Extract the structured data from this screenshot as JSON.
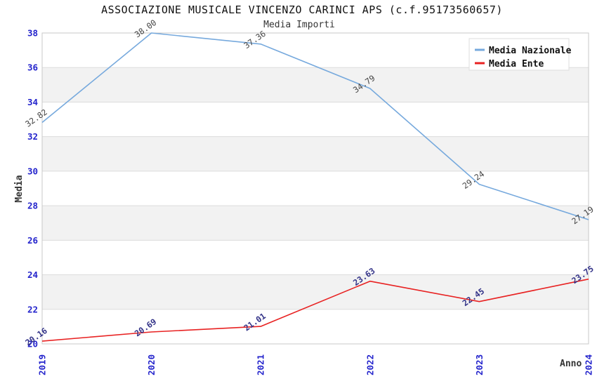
{
  "title": "ASSOCIAZIONE MUSICALE VINCENZO CARINCI APS (c.f.95173560657)",
  "subtitle": "Media Importi",
  "legend": {
    "items": [
      {
        "label": "Media Nazionale",
        "color": "#76A9DD"
      },
      {
        "label": "Media Ente",
        "color": "#E82222"
      }
    ]
  },
  "colors": {
    "tick_label": "#2424CC",
    "band": "#F2F2F2",
    "gridline": "#DCDCDC",
    "plot_border": "#C8C8C8",
    "legend_border": "#DDDDDD",
    "background": "#FFFFFF"
  },
  "chart_data": {
    "type": "line",
    "title": "ASSOCIAZIONE MUSICALE VINCENZO CARINCI APS (c.f.95173560657)",
    "subtitle": "Media Importi",
    "xlabel": "Anno",
    "ylabel": "Media",
    "x": [
      "2019",
      "2020",
      "2021",
      "2022",
      "2023",
      "2024"
    ],
    "series": [
      {
        "name": "Media Nazionale",
        "color": "#76A9DD",
        "label_color": "#444444",
        "label_bold": false,
        "values": [
          32.82,
          38.0,
          37.36,
          34.79,
          29.24,
          27.19
        ]
      },
      {
        "name": "Media Ente",
        "color": "#E82222",
        "label_color": "#333388",
        "label_bold": true,
        "values": [
          20.16,
          20.69,
          21.01,
          23.63,
          22.45,
          23.75
        ]
      }
    ],
    "ylim": [
      20,
      38
    ],
    "ytick_step": 2,
    "grid": "horizontal-bands",
    "legend_position": "top-right",
    "point_label_decimals": 2
  }
}
